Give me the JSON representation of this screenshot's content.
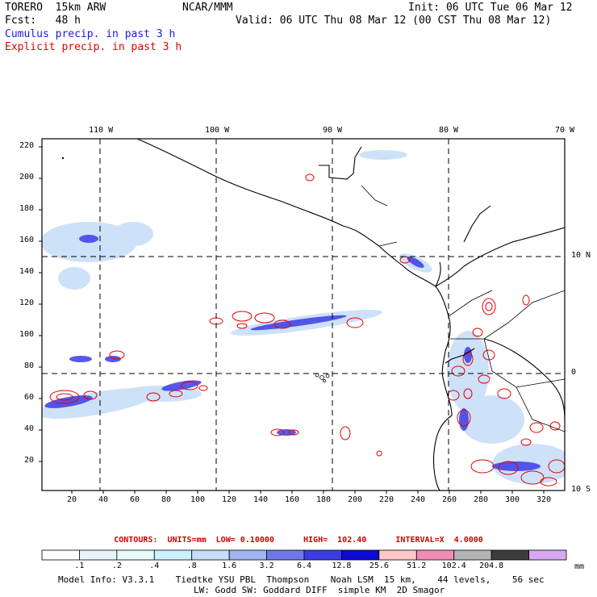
{
  "header": {
    "model": "TORERO  15km ARW",
    "org": "NCAR/MMM",
    "init": "Init: 06 UTC Tue 06 Mar 12",
    "fcst": "Fcst:   48 h",
    "valid": "Valid: 06 UTC Thu 08 Mar 12 (00 CST Thu 08 Mar 12)",
    "legend_cumulus": "Cumulus precip. in past 3 h",
    "legend_explicit": "Explicit precip. in past 3 h"
  },
  "axes": {
    "top_labels": [
      "110 W",
      "100 W",
      "90 W",
      "80 W",
      "70 W"
    ],
    "right_labels": [
      "10 N",
      "0",
      "10 S"
    ],
    "y_ticks": [
      "220",
      "200",
      "180",
      "160",
      "140",
      "120",
      "100",
      "80",
      "60",
      "40",
      "20"
    ],
    "x_ticks": [
      "20",
      "40",
      "60",
      "80",
      "100",
      "120",
      "140",
      "160",
      "180",
      "200",
      "220",
      "240",
      "260",
      "280",
      "300",
      "320"
    ]
  },
  "contours_info": "CONTOURS:  UNITS=mm  LOW= 0.10000      HIGH=  102.40      INTERVAL=X  4.0000",
  "colorbar": {
    "labels": [
      ".1",
      ".2",
      ".4",
      ".8",
      "1.6",
      "3.2",
      "6.4",
      "12.8",
      "25.6",
      "51.2",
      "102.4",
      "204.8"
    ],
    "unit": "mm",
    "colors": [
      "#ffffff",
      "#e8f3ff",
      "#e8fbfb",
      "#ccf0ff",
      "#c8def8",
      "#a0b4f0",
      "#6e78ea",
      "#3c3ce6",
      "#0a0ad2",
      "#ffc8c8",
      "#f08cb4",
      "#b4b4b4",
      "#3c3c3c",
      "#d7a8f0"
    ]
  },
  "model_info": {
    "line1": "Model Info: V3.3.1    Tiedtke YSU PBL  Thompson    Noah LSM  15 km,    44 levels,    56 sec",
    "line2": "LW: Godd SW: Goddard DIFF  simple KM  2D Smagor"
  }
}
